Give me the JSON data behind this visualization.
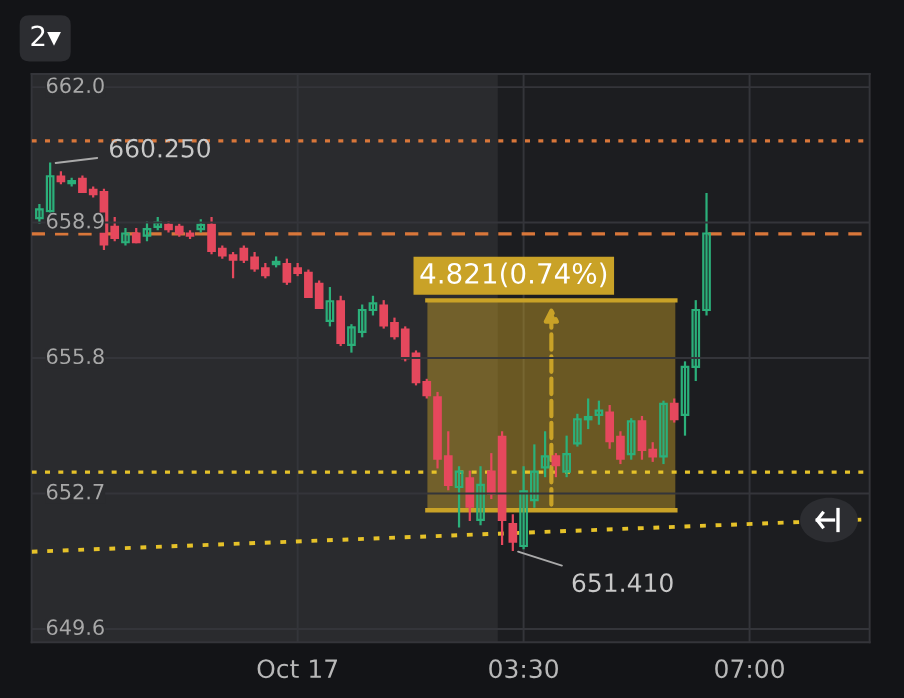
{
  "chart_data": {
    "type": "candlestick",
    "x": [
      -4.0,
      -3.8333,
      -3.6667,
      -3.5,
      -3.3333,
      -3.1667,
      -3.0,
      -2.8333,
      -2.6667,
      -2.5,
      -2.3333,
      -2.1667,
      -2.0,
      -1.8333,
      -1.6667,
      -1.5,
      -1.3333,
      -1.1667,
      -1.0,
      -0.8333,
      -0.6667,
      -0.5,
      -0.3333,
      -0.1667,
      0.0,
      0.1667,
      0.3333,
      0.5,
      0.6667,
      0.8333,
      1.0,
      1.1667,
      1.3333,
      1.5,
      1.6667,
      1.8333,
      2.0,
      2.1667,
      2.3333,
      2.5,
      2.6667,
      2.8333,
      3.0,
      3.1667,
      3.3333,
      3.5,
      3.6667,
      3.8333,
      4.0,
      4.1667,
      4.3333,
      4.5,
      4.6667,
      4.8333,
      5.0,
      5.1667,
      5.3333,
      5.5,
      5.6667,
      5.8333,
      6.0,
      6.1667,
      6.3333
    ],
    "ohlc": [
      [
        659.0,
        659.3,
        658.9,
        659.2
      ],
      [
        659.16,
        660.25,
        659.09,
        659.96
      ],
      [
        659.95,
        660.05,
        659.8,
        659.85
      ],
      [
        659.8,
        659.9,
        659.75,
        659.85
      ],
      [
        659.9,
        659.95,
        659.6,
        659.6
      ],
      [
        659.65,
        659.7,
        659.5,
        659.55
      ],
      [
        659.6,
        659.65,
        658.3,
        658.4
      ],
      [
        658.8,
        659.0,
        658.5,
        658.55
      ],
      [
        658.45,
        658.75,
        658.4,
        658.65
      ],
      [
        658.65,
        658.75,
        658.45,
        658.45
      ],
      [
        658.6,
        658.9,
        658.5,
        658.75
      ],
      [
        658.8,
        659.0,
        658.75,
        658.9
      ],
      [
        658.85,
        658.9,
        658.7,
        658.75
      ],
      [
        658.8,
        658.85,
        658.6,
        658.65
      ],
      [
        658.65,
        658.7,
        658.55,
        658.6
      ],
      [
        658.75,
        658.95,
        658.7,
        658.85
      ],
      [
        658.85,
        659.0,
        658.2,
        658.25
      ],
      [
        658.3,
        658.35,
        658.1,
        658.15
      ],
      [
        658.15,
        658.2,
        657.65,
        658.05
      ],
      [
        658.3,
        658.35,
        658.0,
        658.05
      ],
      [
        658.1,
        658.2,
        657.8,
        657.85
      ],
      [
        657.85,
        657.95,
        657.65,
        657.7
      ],
      [
        657.95,
        658.1,
        657.9,
        658.0
      ],
      [
        657.95,
        658.05,
        657.5,
        657.55
      ],
      [
        657.85,
        657.95,
        657.7,
        657.75
      ],
      [
        657.75,
        657.8,
        657.2,
        657.2
      ],
      [
        657.5,
        657.55,
        656.95,
        656.95
      ],
      [
        656.65,
        657.4,
        656.55,
        657.1
      ],
      [
        657.1,
        657.2,
        656.1,
        656.15
      ],
      [
        656.1,
        656.55,
        655.95,
        656.5
      ],
      [
        656.4,
        657.0,
        656.3,
        656.9
      ],
      [
        656.9,
        657.2,
        656.8,
        657.05
      ],
      [
        657.0,
        657.1,
        656.5,
        656.55
      ],
      [
        656.6,
        656.7,
        656.25,
        656.3
      ],
      [
        656.45,
        656.5,
        655.75,
        655.8
      ],
      [
        655.9,
        655.95,
        655.2,
        655.25
      ],
      [
        655.25,
        655.3,
        654.9,
        654.95
      ],
      [
        654.9,
        655.0,
        653.3,
        653.5
      ],
      [
        653.55,
        654.1,
        652.8,
        652.9
      ],
      [
        652.85,
        653.3,
        651.95,
        653.2
      ],
      [
        653.05,
        653.2,
        652.1,
        652.4
      ],
      [
        652.1,
        653.3,
        652.0,
        652.9
      ],
      [
        653.2,
        653.6,
        652.6,
        652.7
      ],
      [
        654.0,
        654.1,
        651.55,
        652.1
      ],
      [
        652.0,
        652.2,
        651.41,
        651.6
      ],
      [
        651.5,
        653.3,
        651.45,
        652.75
      ],
      [
        652.55,
        653.8,
        652.4,
        653.2
      ],
      [
        653.3,
        654.1,
        653.1,
        653.55
      ],
      [
        653.55,
        653.6,
        653.1,
        653.35
      ],
      [
        653.2,
        654.0,
        653.1,
        653.6
      ],
      [
        653.85,
        654.5,
        653.8,
        654.4
      ],
      [
        654.4,
        654.85,
        654.2,
        654.45
      ],
      [
        654.5,
        654.8,
        654.3,
        654.6
      ],
      [
        654.55,
        654.7,
        653.75,
        653.9
      ],
      [
        654.0,
        654.1,
        653.4,
        653.5
      ],
      [
        653.6,
        654.4,
        653.5,
        654.35
      ],
      [
        654.35,
        654.45,
        653.5,
        653.7
      ],
      [
        653.7,
        653.85,
        653.45,
        653.55
      ],
      [
        653.55,
        654.8,
        653.4,
        654.75
      ],
      [
        654.75,
        654.85,
        654.35,
        654.4
      ],
      [
        654.5,
        655.7,
        654.05,
        655.6
      ],
      [
        655.6,
        657.1,
        655.3,
        656.9
      ],
      [
        656.9,
        659.55,
        656.8,
        658.65
      ]
    ],
    "series": [
      {
        "type": "line",
        "x": [
          -4.12,
          8.86
        ],
        "values": [
          651.37,
          652.11
        ],
        "color": "#e6c229",
        "line_style": "dotted"
      },
      {
        "type": "line",
        "x": [
          2.01,
          5.85
        ],
        "values": [
          657.12,
          657.12
        ],
        "lower": [
          652.32,
          652.32
        ],
        "upper": [
          657.12,
          657.12
        ],
        "color": "#c9a227"
      }
    ],
    "xlim": [
      -4.12,
      8.86
    ],
    "xticks": [
      {
        "value": 0,
        "label": "Oct 17"
      },
      {
        "value": 3.5,
        "label": "03:30"
      },
      {
        "value": 7.0,
        "label": "07:00"
      }
    ],
    "ylim": [
      649.3,
      662.3
    ],
    "yticks": [
      {
        "value": 649.6,
        "label": "649.6"
      },
      {
        "value": 652.7,
        "label": "652.7"
      },
      {
        "value": 655.8,
        "label": "655.8"
      },
      {
        "value": 658.9,
        "label": "658.9"
      },
      {
        "value": 662.0,
        "label": "662.0"
      }
    ],
    "grid": true,
    "ref_lines": [
      {
        "axis": "y",
        "value": 660.77,
        "color": "#d9773a",
        "line_style": "dotted"
      },
      {
        "axis": "y",
        "value": 658.64,
        "color": "#d9773a",
        "line_style": "dashed"
      },
      {
        "axis": "y",
        "value": 653.19,
        "color": "#e6c229",
        "line_style": "dotted"
      }
    ],
    "bands": [
      {
        "axis": "x",
        "from": -4.12,
        "to": 3.1,
        "color": "#2a2b2e"
      }
    ],
    "annotations": [
      {
        "text": "660.250",
        "x": -3.8333,
        "y": 660.25
      },
      {
        "text": "651.410",
        "x": 3.3333,
        "y": 651.41
      },
      {
        "text": "4.821(0.74%)",
        "x": 2.01,
        "y": 657.12
      },
      "2▾"
    ]
  }
}
